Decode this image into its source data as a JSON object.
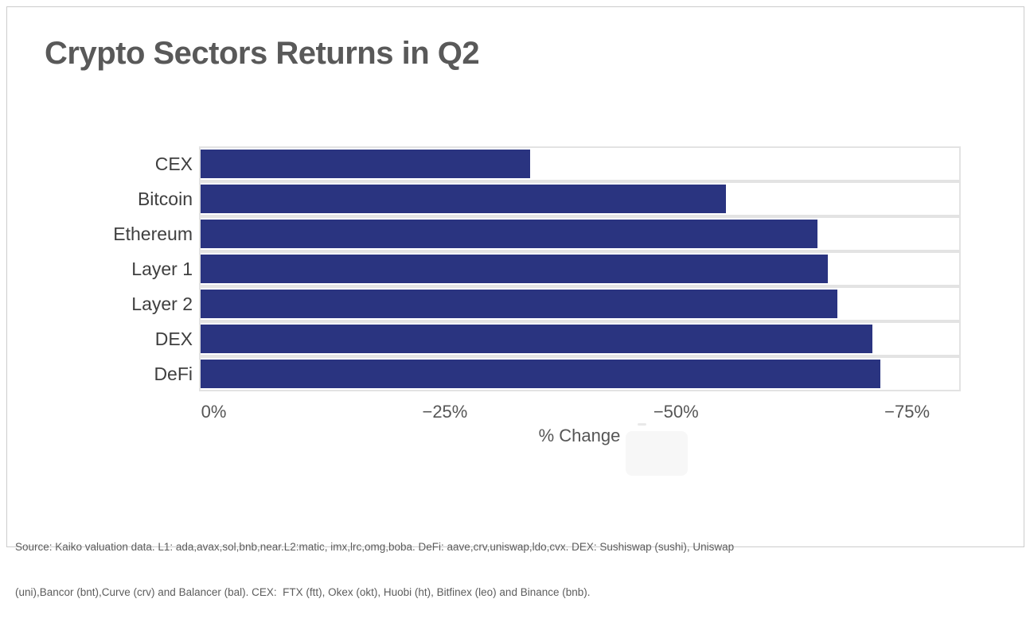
{
  "title": "Crypto Sectors Returns in Q2",
  "chart_data": {
    "type": "bar",
    "orientation": "horizontal",
    "title": "Crypto Sectors Returns in Q2",
    "categories": [
      "CEX",
      "Bitcoin",
      "Ethereum",
      "Layer 1",
      "Layer 2",
      "DEX",
      "DeFi"
    ],
    "values": [
      -34.2,
      -55.5,
      -65.4,
      -66.5,
      -67.6,
      -71.4,
      -72.2
    ],
    "unit": "%",
    "xlabel": "% Change",
    "x_ticks": [
      {
        "value": 0,
        "label": "0%"
      },
      {
        "value": -25,
        "label": "−25%"
      },
      {
        "value": -50,
        "label": "−50%"
      },
      {
        "value": -75,
        "label": "−75%"
      }
    ],
    "x_range_left": 1.6,
    "x_range_right": -80.8,
    "legend": "none",
    "grid": "row-separators",
    "bar_color": "#2a3480",
    "row_border_color": "#e3e3e3",
    "text_color": "#565656"
  },
  "footnote": {
    "line1": "Source: Kaiko valuation data. L1: ada,avax,sol,bnb,near.L2:matic, imx,lrc,omg,boba. DeFi: aave,crv,uniswap,ldo,cvx. DEX: Sushiswap (sushi), Uniswap",
    "line2": "(uni),Bancor (bnt),Curve (crv) and Balancer (bal). CEX:  FTX (ftt), Okex (okt), Huobi (ht), Bitfinex (leo) and Binance (bnb)."
  }
}
